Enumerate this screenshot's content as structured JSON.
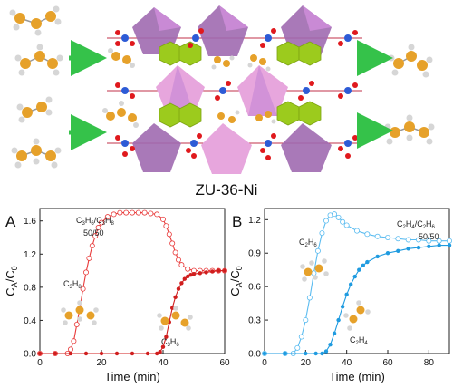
{
  "framework": {
    "title": "ZU-36-Ni",
    "colors": {
      "octahedron": "#a06ab0",
      "octahedron_light": "#e7a6dd",
      "pyrazine": "#9ccb1d",
      "metal": "#2d5bd6",
      "fluorine": "#e0191d",
      "bond": "#c0304a",
      "carbon": "#e6a12a",
      "hydrogen": "#d6d6d6",
      "arrow": "#35c24a"
    }
  },
  "chart_data": [
    {
      "panel": "A",
      "type": "line",
      "annotation": "C3H6/C3H8 50/50",
      "xlabel": "Time (min)",
      "ylabel": "CA/C0",
      "xlim": [
        0,
        60
      ],
      "ylim": [
        0,
        1.75
      ],
      "xticks": [
        0,
        20,
        40,
        60
      ],
      "yticks": [
        0.0,
        0.4,
        0.8,
        1.2,
        1.6
      ],
      "series": [
        {
          "name": "C3H8",
          "color": "#e83a3a",
          "style": "open",
          "x": [
            0,
            5,
            9,
            10,
            11,
            12,
            13,
            14,
            15,
            16,
            17,
            18,
            19,
            20,
            22,
            24,
            26,
            28,
            30,
            32,
            34,
            36,
            38,
            40,
            41,
            42,
            43,
            44,
            45,
            46,
            48,
            50,
            52,
            54,
            56,
            58,
            60
          ],
          "y": [
            0,
            0,
            0,
            0.05,
            0.15,
            0.35,
            0.55,
            0.78,
            0.98,
            1.15,
            1.3,
            1.42,
            1.52,
            1.58,
            1.65,
            1.68,
            1.7,
            1.7,
            1.7,
            1.7,
            1.7,
            1.69,
            1.68,
            1.62,
            1.54,
            1.44,
            1.33,
            1.22,
            1.13,
            1.07,
            1.02,
            1.0,
            1.0,
            1.0,
            1.0,
            1.0,
            1.0
          ]
        },
        {
          "name": "C3H6",
          "color": "#d01e1e",
          "style": "filled",
          "x": [
            0,
            5,
            10,
            15,
            20,
            25,
            30,
            35,
            38,
            39,
            40,
            41,
            42,
            43,
            44,
            45,
            46,
            47,
            48,
            49,
            50,
            52,
            54,
            56,
            58,
            60
          ],
          "y": [
            0,
            0,
            0,
            0,
            0,
            0,
            0,
            0,
            0,
            0.02,
            0.08,
            0.2,
            0.38,
            0.55,
            0.68,
            0.78,
            0.85,
            0.9,
            0.93,
            0.95,
            0.96,
            0.97,
            0.98,
            0.99,
            1.0,
            1.0
          ]
        }
      ]
    },
    {
      "panel": "B",
      "type": "line",
      "annotation": "C2H4/C2H6 50/50",
      "xlabel": "Time (min)",
      "ylabel": "CA/C0",
      "xlim": [
        0,
        90
      ],
      "ylim": [
        0,
        1.3
      ],
      "xticks": [
        0,
        20,
        40,
        60,
        80
      ],
      "yticks": [
        0.0,
        0.3,
        0.6,
        0.9,
        1.2
      ],
      "series": [
        {
          "name": "C2H6",
          "color": "#5bbcf0",
          "style": "open",
          "x": [
            0,
            10,
            14,
            16,
            18,
            20,
            22,
            24,
            26,
            28,
            30,
            32,
            34,
            36,
            38,
            40,
            45,
            50,
            55,
            60,
            65,
            70,
            75,
            80,
            85,
            90
          ],
          "y": [
            0,
            0,
            0,
            0.05,
            0.15,
            0.3,
            0.5,
            0.72,
            0.92,
            1.08,
            1.19,
            1.24,
            1.25,
            1.22,
            1.18,
            1.15,
            1.1,
            1.07,
            1.05,
            1.04,
            1.03,
            1.02,
            1.02,
            1.01,
            1.01,
            1.01
          ]
        },
        {
          "name": "C2H4",
          "color": "#1f9be0",
          "style": "filled",
          "x": [
            0,
            10,
            20,
            25,
            28,
            30,
            32,
            34,
            36,
            38,
            40,
            42,
            44,
            46,
            48,
            50,
            55,
            60,
            65,
            70,
            75,
            80,
            85,
            90
          ],
          "y": [
            0,
            0,
            0,
            0,
            0,
            0.02,
            0.08,
            0.18,
            0.3,
            0.42,
            0.53,
            0.62,
            0.69,
            0.75,
            0.79,
            0.82,
            0.87,
            0.9,
            0.92,
            0.94,
            0.95,
            0.96,
            0.97,
            0.97
          ]
        }
      ]
    }
  ]
}
